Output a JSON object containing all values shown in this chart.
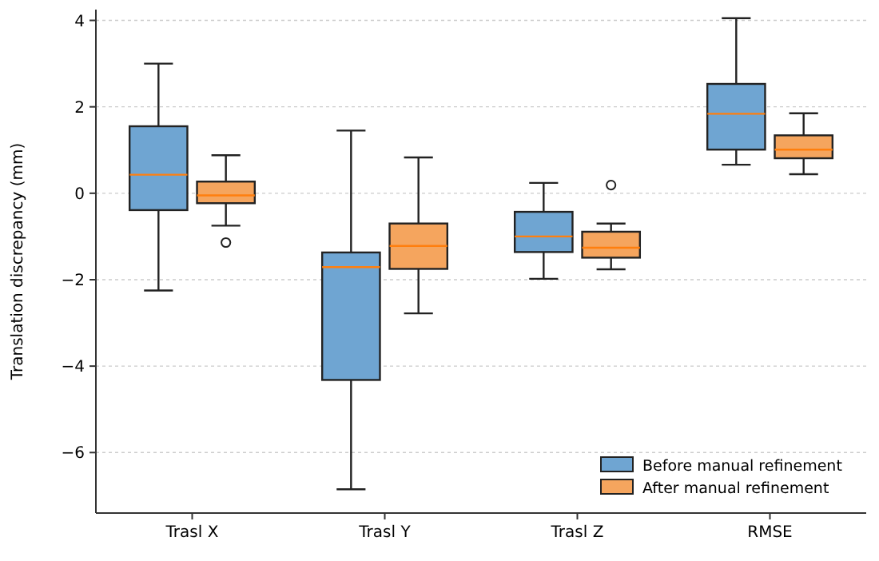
{
  "chart_data": {
    "type": "box",
    "ylabel": "Translation discrepancy (mm)",
    "categories": [
      "Trasl X",
      "Trasl Y",
      "Trasl Z",
      "RMSE"
    ],
    "ylim": [
      -7.4,
      4.25
    ],
    "yticks": [
      {
        "value": -6,
        "label": "−6"
      },
      {
        "value": -4,
        "label": "−4"
      },
      {
        "value": -2,
        "label": "−2"
      },
      0,
      2,
      4
    ],
    "grid": "y",
    "legend": "bottom right",
    "series": [
      {
        "name": "Before manual refinement",
        "color": "#6fa5d2",
        "boxes": [
          {
            "low": -2.25,
            "q1": -0.39,
            "median": 0.43,
            "q3": 1.55,
            "high": 3.0
          },
          {
            "low": -6.85,
            "q1": -4.32,
            "median": -1.71,
            "q3": -1.37,
            "high": 1.45
          },
          {
            "low": -1.98,
            "q1": -1.36,
            "median": -1.0,
            "q3": -0.43,
            "high": 0.24
          },
          {
            "low": 0.66,
            "q1": 1.01,
            "median": 1.84,
            "q3": 2.53,
            "high": 4.05
          }
        ]
      },
      {
        "name": "After manual refinement",
        "color": "#f5a55e",
        "boxes": [
          {
            "low": -0.75,
            "q1": -0.23,
            "median": -0.05,
            "q3": 0.27,
            "high": 0.88,
            "outliers": [
              -1.14
            ]
          },
          {
            "low": -2.78,
            "q1": -1.75,
            "median": -1.22,
            "q3": -0.7,
            "high": 0.83
          },
          {
            "low": -1.76,
            "q1": -1.49,
            "median": -1.26,
            "q3": -0.89,
            "high": -0.7,
            "outliers": [
              0.19
            ]
          },
          {
            "low": 0.44,
            "q1": 0.81,
            "median": 1.01,
            "q3": 1.34,
            "high": 1.85
          }
        ]
      }
    ]
  }
}
